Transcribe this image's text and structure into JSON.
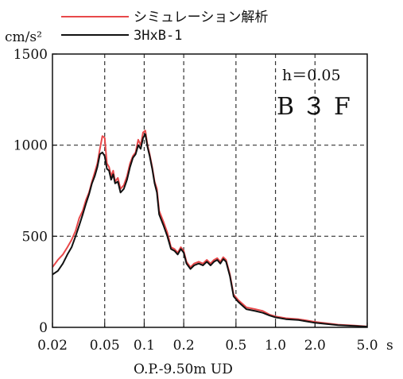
{
  "chart_data": {
    "type": "line",
    "ylabel": "cm/s²",
    "xlabel": "O.P.-9.50m UD",
    "x_unit": "s",
    "xscale": "log",
    "xlim": [
      0.02,
      5.0
    ],
    "ylim": [
      0,
      1500
    ],
    "grid": true,
    "legend_position": "top",
    "x_ticks": [
      {
        "value": 0.02,
        "label": "0.02"
      },
      {
        "value": 0.05,
        "label": "0.05"
      },
      {
        "value": 0.1,
        "label": "0.1"
      },
      {
        "value": 0.2,
        "label": "0.2"
      },
      {
        "value": 0.5,
        "label": "0.5"
      },
      {
        "value": 1.0,
        "label": "1.0"
      },
      {
        "value": 2.0,
        "label": "2.0"
      },
      {
        "value": 5.0,
        "label": "5.0"
      }
    ],
    "y_ticks": [
      {
        "value": 0,
        "label": "0"
      },
      {
        "value": 500,
        "label": "500"
      },
      {
        "value": 1000,
        "label": "1000"
      },
      {
        "value": 1500,
        "label": "1500"
      }
    ],
    "annotations": {
      "damping": "h＝0.05",
      "floor": "B３F"
    },
    "series": [
      {
        "name": "シミュレーション解析",
        "color": "#e8484a",
        "points": [
          [
            0.02,
            330
          ],
          [
            0.022,
            370
          ],
          [
            0.024,
            400
          ],
          [
            0.026,
            440
          ],
          [
            0.028,
            480
          ],
          [
            0.03,
            530
          ],
          [
            0.032,
            600
          ],
          [
            0.034,
            640
          ],
          [
            0.036,
            700
          ],
          [
            0.038,
            740
          ],
          [
            0.04,
            800
          ],
          [
            0.042,
            850
          ],
          [
            0.044,
            900
          ],
          [
            0.046,
            980
          ],
          [
            0.048,
            1050
          ],
          [
            0.05,
            1040
          ],
          [
            0.052,
            900
          ],
          [
            0.054,
            880
          ],
          [
            0.056,
            830
          ],
          [
            0.058,
            860
          ],
          [
            0.06,
            800
          ],
          [
            0.063,
            820
          ],
          [
            0.066,
            760
          ],
          [
            0.07,
            780
          ],
          [
            0.074,
            830
          ],
          [
            0.078,
            900
          ],
          [
            0.082,
            940
          ],
          [
            0.086,
            960
          ],
          [
            0.09,
            1030
          ],
          [
            0.094,
            1000
          ],
          [
            0.098,
            1070
          ],
          [
            0.102,
            1080
          ],
          [
            0.106,
            1000
          ],
          [
            0.11,
            950
          ],
          [
            0.115,
            880
          ],
          [
            0.12,
            800
          ],
          [
            0.125,
            760
          ],
          [
            0.13,
            640
          ],
          [
            0.14,
            580
          ],
          [
            0.15,
            520
          ],
          [
            0.16,
            440
          ],
          [
            0.17,
            430
          ],
          [
            0.18,
            410
          ],
          [
            0.19,
            440
          ],
          [
            0.2,
            420
          ],
          [
            0.21,
            360
          ],
          [
            0.225,
            330
          ],
          [
            0.24,
            350
          ],
          [
            0.26,
            360
          ],
          [
            0.28,
            350
          ],
          [
            0.3,
            370
          ],
          [
            0.32,
            350
          ],
          [
            0.34,
            370
          ],
          [
            0.36,
            380
          ],
          [
            0.38,
            360
          ],
          [
            0.4,
            385
          ],
          [
            0.42,
            370
          ],
          [
            0.45,
            290
          ],
          [
            0.48,
            180
          ],
          [
            0.52,
            150
          ],
          [
            0.6,
            110
          ],
          [
            0.7,
            100
          ],
          [
            0.8,
            90
          ],
          [
            0.9,
            70
          ],
          [
            1.0,
            60
          ],
          [
            1.2,
            50
          ],
          [
            1.5,
            45
          ],
          [
            2.0,
            30
          ],
          [
            3.0,
            15
          ],
          [
            4.0,
            10
          ],
          [
            5.0,
            5
          ]
        ]
      },
      {
        "name": "3HxB-1",
        "color": "#111111",
        "points": [
          [
            0.02,
            290
          ],
          [
            0.022,
            310
          ],
          [
            0.024,
            350
          ],
          [
            0.026,
            400
          ],
          [
            0.028,
            440
          ],
          [
            0.03,
            500
          ],
          [
            0.032,
            560
          ],
          [
            0.034,
            620
          ],
          [
            0.036,
            680
          ],
          [
            0.038,
            730
          ],
          [
            0.04,
            790
          ],
          [
            0.042,
            830
          ],
          [
            0.044,
            880
          ],
          [
            0.046,
            950
          ],
          [
            0.048,
            960
          ],
          [
            0.05,
            940
          ],
          [
            0.052,
            870
          ],
          [
            0.054,
            860
          ],
          [
            0.056,
            810
          ],
          [
            0.058,
            840
          ],
          [
            0.06,
            790
          ],
          [
            0.063,
            800
          ],
          [
            0.066,
            740
          ],
          [
            0.07,
            760
          ],
          [
            0.074,
            810
          ],
          [
            0.078,
            880
          ],
          [
            0.082,
            930
          ],
          [
            0.086,
            950
          ],
          [
            0.09,
            1000
          ],
          [
            0.094,
            980
          ],
          [
            0.098,
            1040
          ],
          [
            0.102,
            1060
          ],
          [
            0.106,
            990
          ],
          [
            0.11,
            940
          ],
          [
            0.115,
            870
          ],
          [
            0.12,
            790
          ],
          [
            0.125,
            740
          ],
          [
            0.13,
            620
          ],
          [
            0.14,
            560
          ],
          [
            0.15,
            500
          ],
          [
            0.16,
            430
          ],
          [
            0.17,
            420
          ],
          [
            0.18,
            400
          ],
          [
            0.19,
            430
          ],
          [
            0.2,
            410
          ],
          [
            0.21,
            350
          ],
          [
            0.225,
            320
          ],
          [
            0.24,
            340
          ],
          [
            0.26,
            350
          ],
          [
            0.28,
            340
          ],
          [
            0.3,
            360
          ],
          [
            0.32,
            340
          ],
          [
            0.34,
            360
          ],
          [
            0.36,
            370
          ],
          [
            0.38,
            350
          ],
          [
            0.4,
            375
          ],
          [
            0.42,
            360
          ],
          [
            0.45,
            280
          ],
          [
            0.48,
            170
          ],
          [
            0.52,
            140
          ],
          [
            0.6,
            100
          ],
          [
            0.7,
            90
          ],
          [
            0.8,
            80
          ],
          [
            0.9,
            65
          ],
          [
            1.0,
            55
          ],
          [
            1.2,
            45
          ],
          [
            1.5,
            40
          ],
          [
            2.0,
            25
          ],
          [
            3.0,
            12
          ],
          [
            4.0,
            8
          ],
          [
            5.0,
            4
          ]
        ]
      }
    ]
  }
}
